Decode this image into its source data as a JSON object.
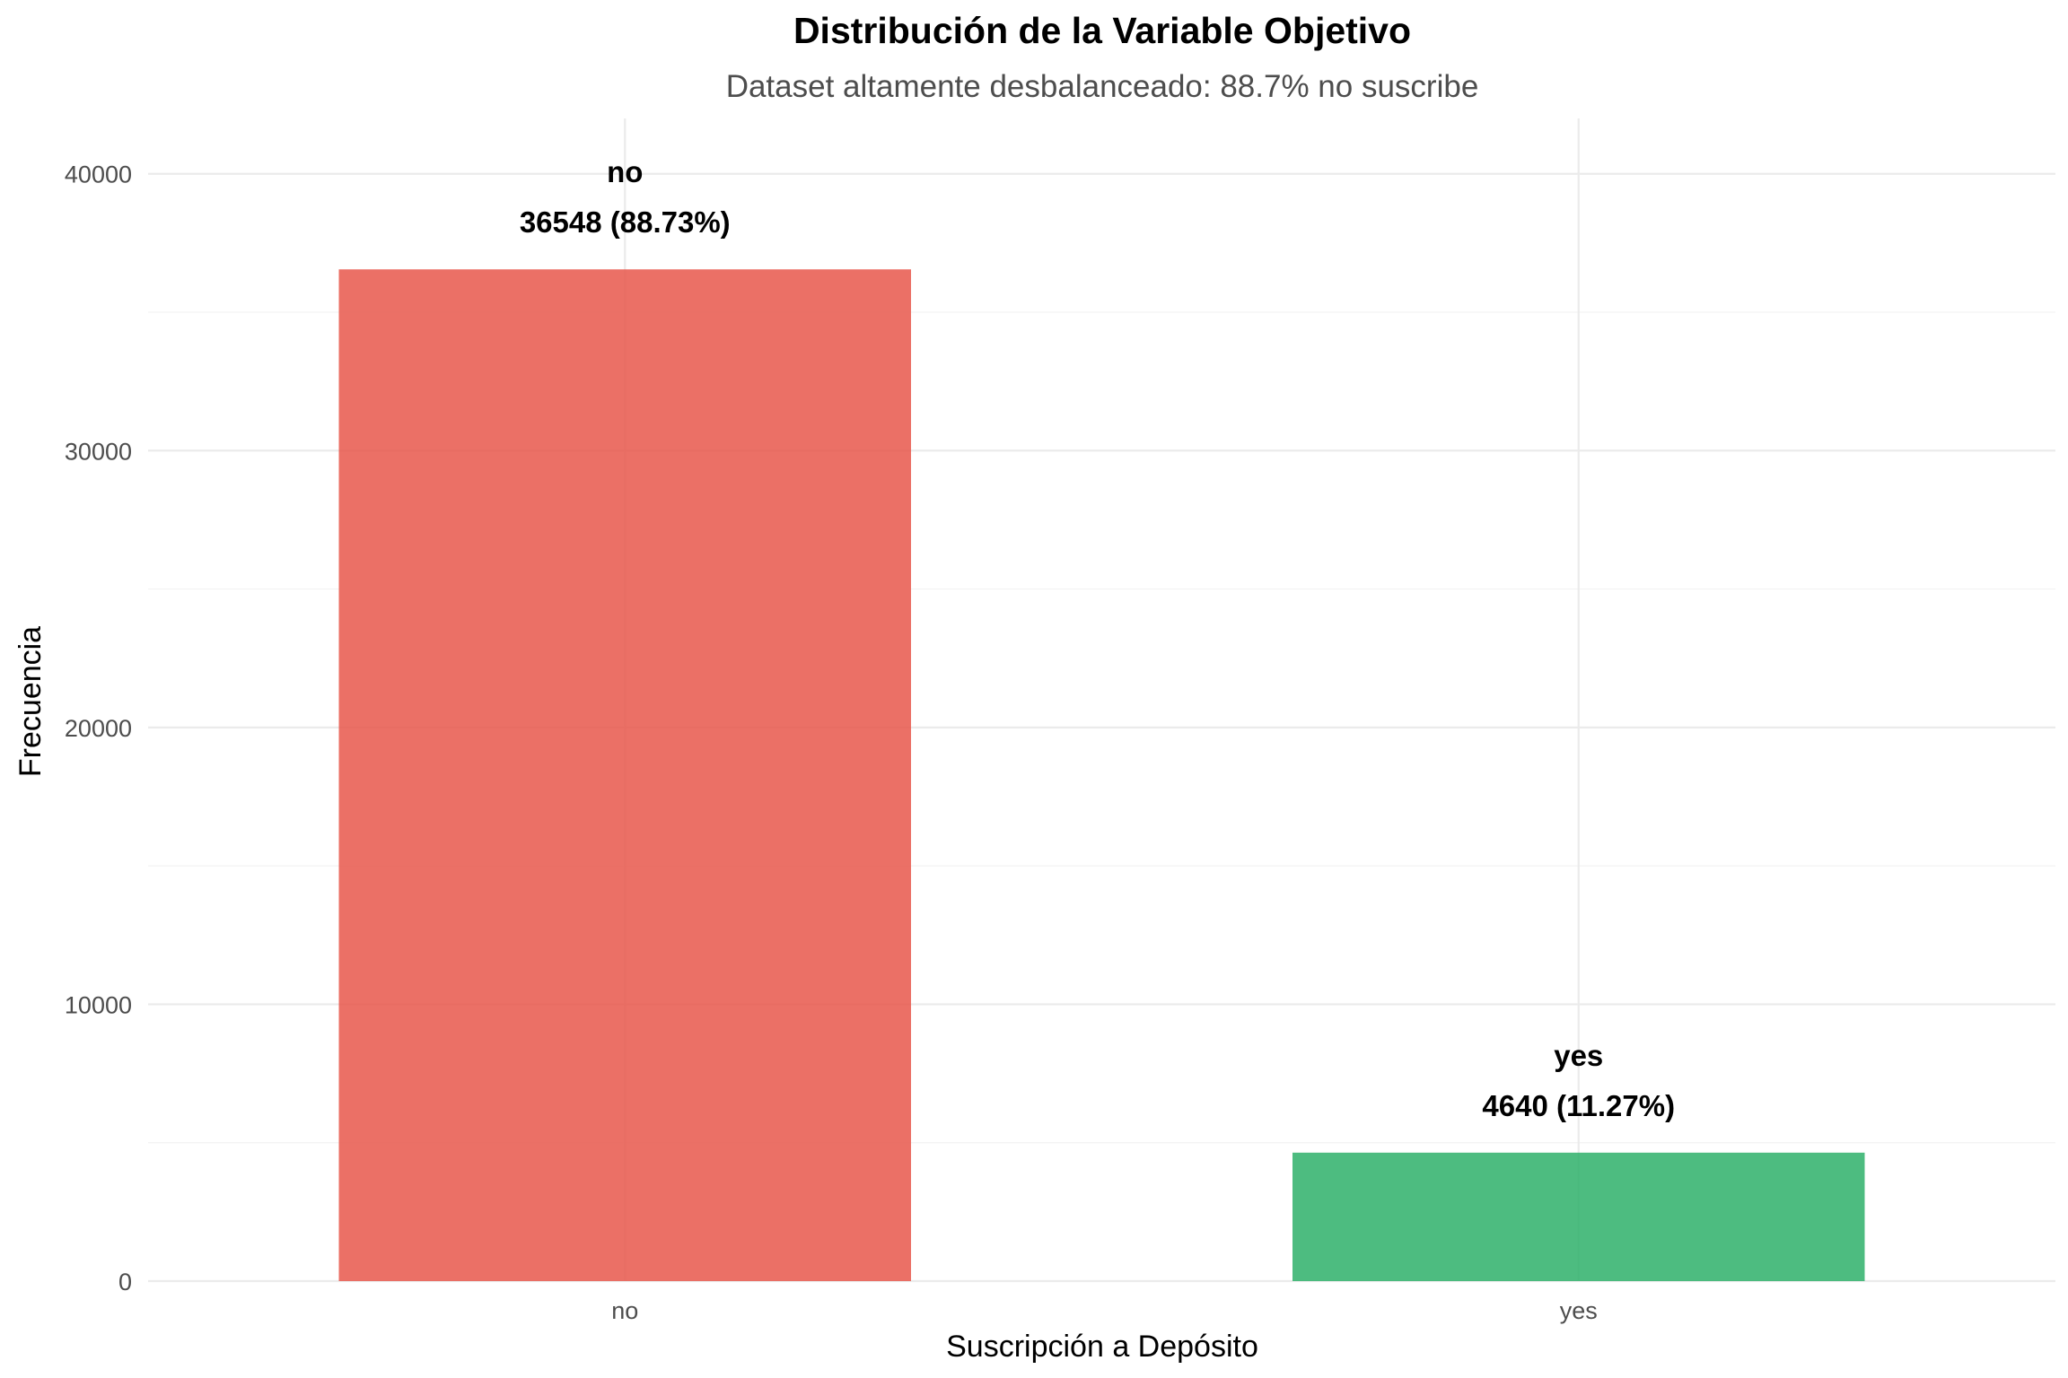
{
  "chart_data": {
    "type": "bar",
    "title": "Distribución de la Variable Objetivo",
    "subtitle": "Dataset altamente desbalanceado: 88.7% no suscribe",
    "xlabel": "Suscripción a Depósito",
    "ylabel": "Frecuencia",
    "categories": [
      "no",
      "yes"
    ],
    "values": [
      36548,
      4640
    ],
    "percentages": [
      88.73,
      11.27
    ],
    "bar_labels": [
      {
        "category": "no",
        "value_text": "36548 (88.73%)"
      },
      {
        "category": "yes",
        "value_text": "4640 (11.27%)"
      }
    ],
    "colors": [
      "#e8574b",
      "#2eb06a"
    ],
    "bar_opacity": 0.85,
    "ylim": [
      0,
      42000
    ],
    "y_ticks": [
      0,
      10000,
      20000,
      30000,
      40000
    ],
    "y_minor_ticks": [
      5000,
      15000,
      25000,
      35000
    ],
    "grid": true,
    "legend": "none"
  }
}
